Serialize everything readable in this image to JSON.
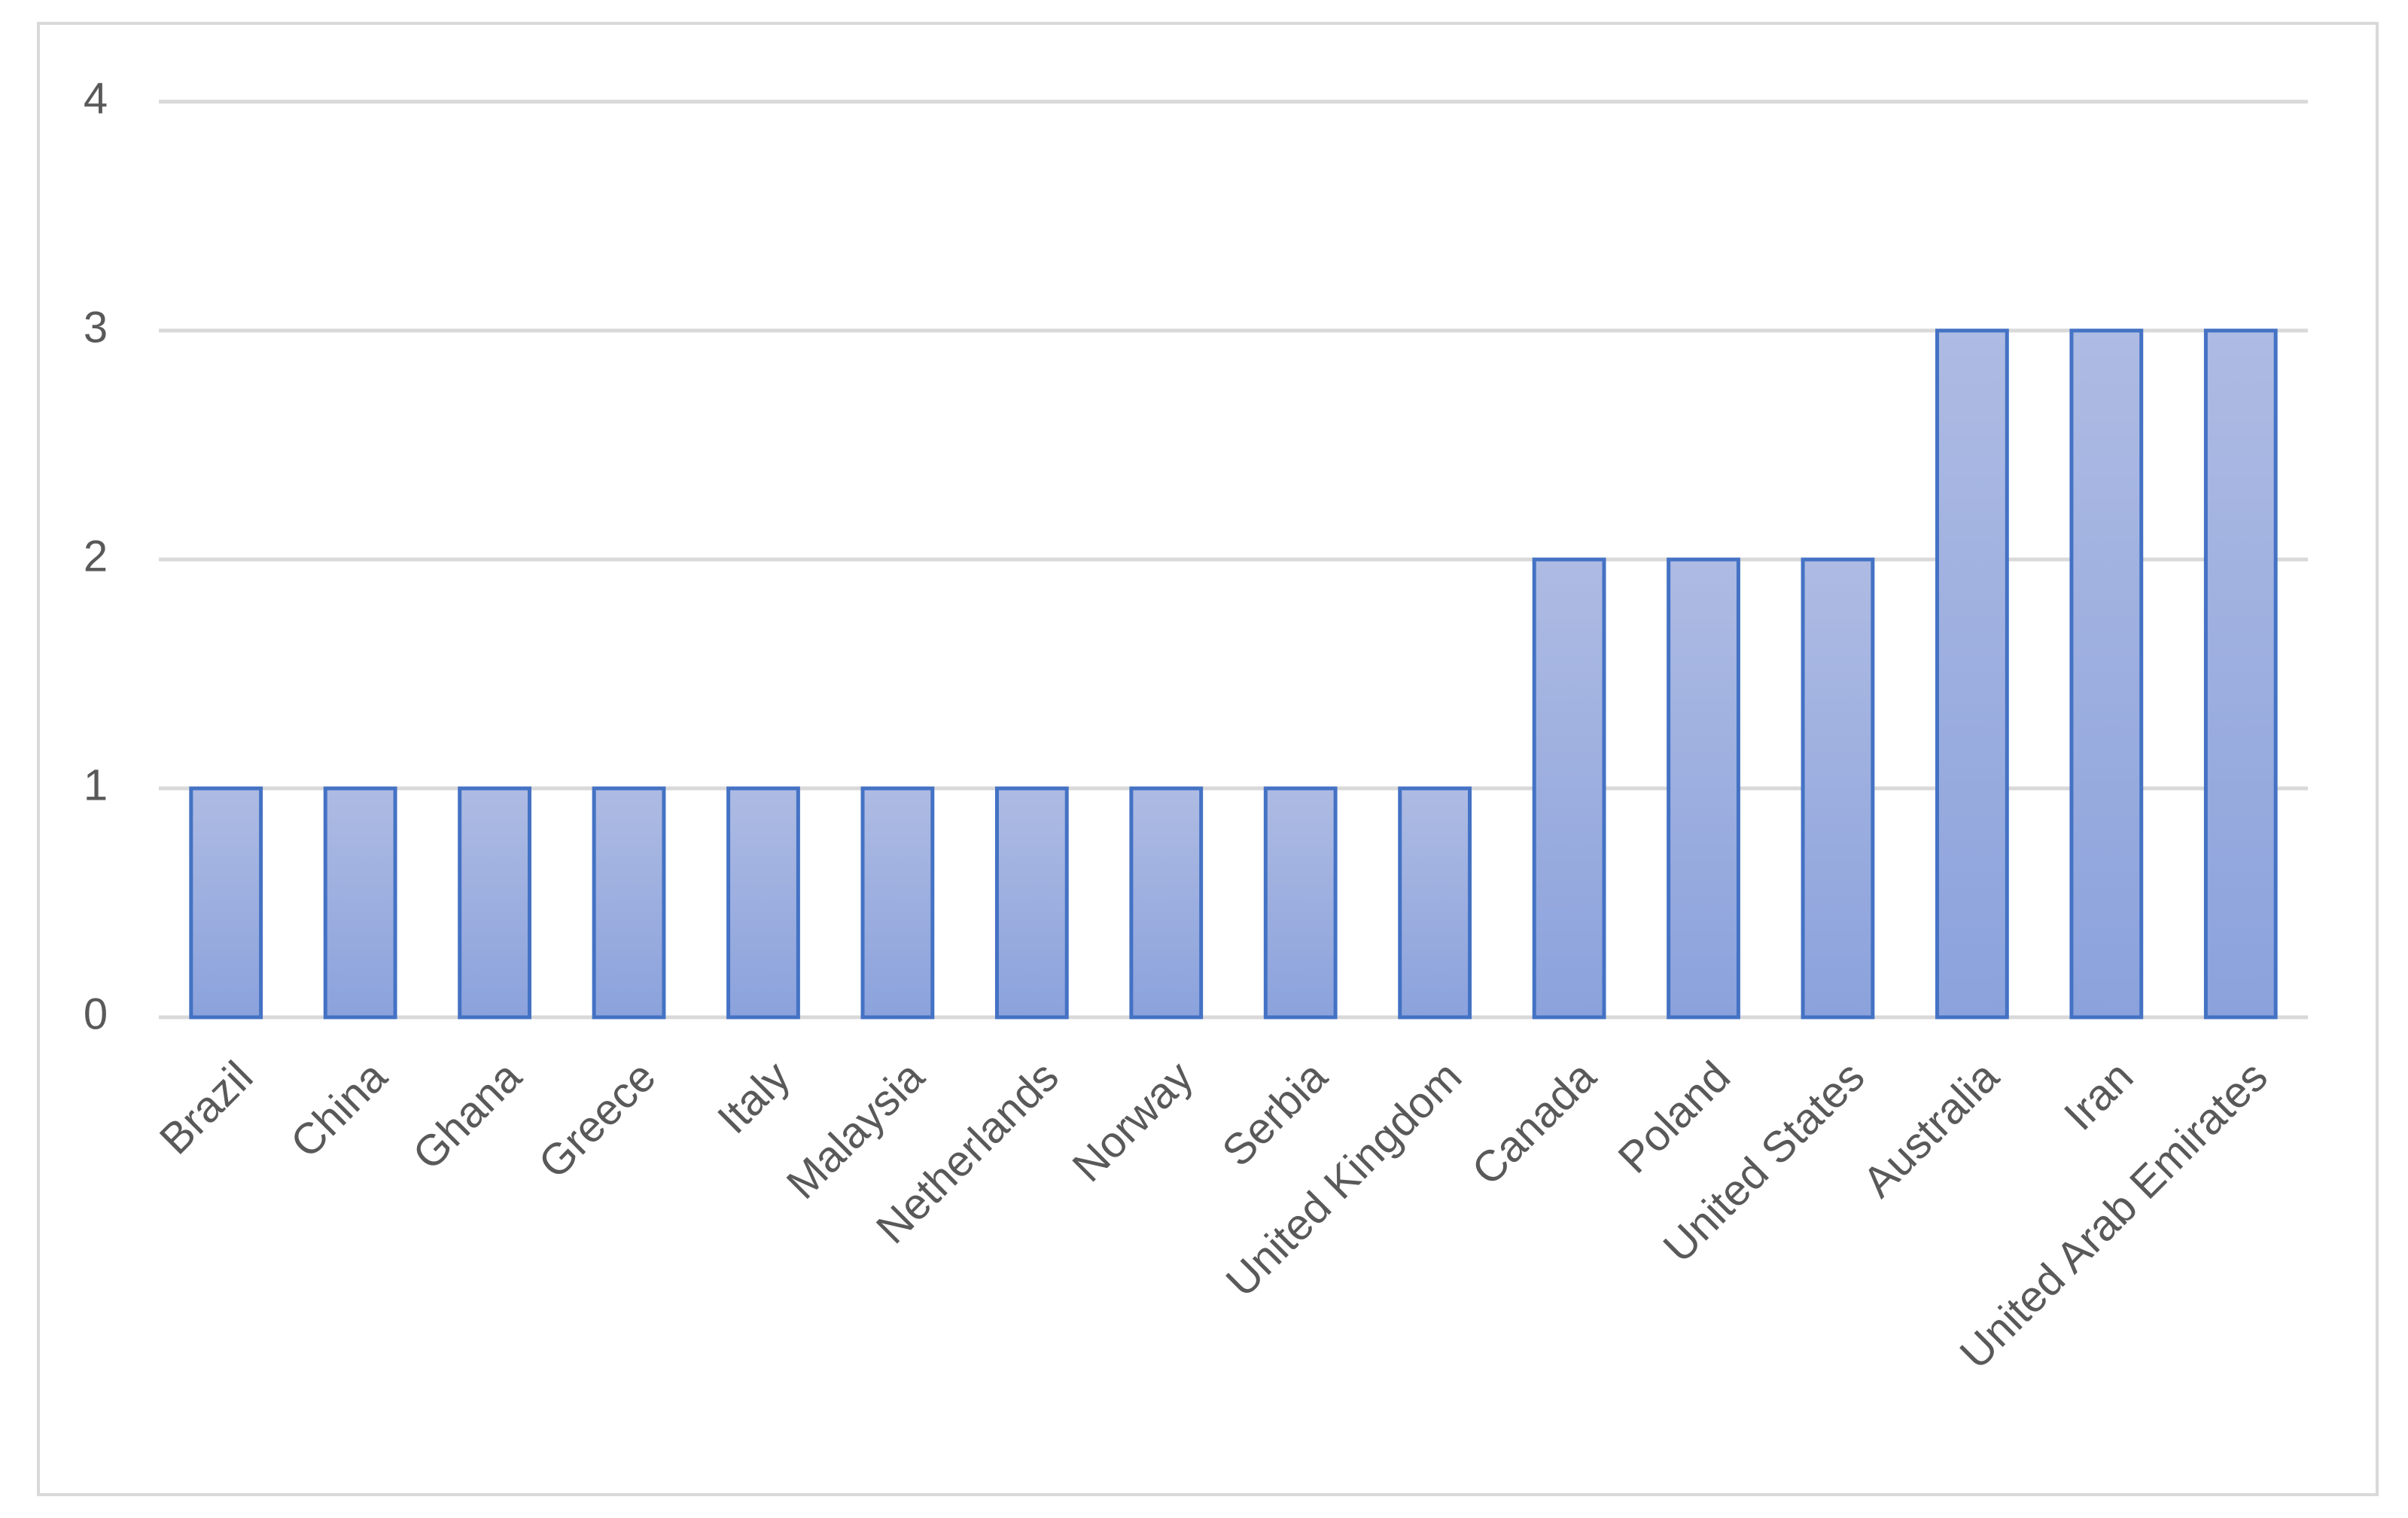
{
  "chart_data": {
    "type": "bar",
    "categories": [
      "Brazil",
      "China",
      "Ghana",
      "Greece",
      "Italy",
      "Malaysia",
      "Netherlands",
      "Norway",
      "Serbia",
      "United Kingdom",
      "Canada",
      "Poland",
      "United States",
      "Australia",
      "Iran",
      "United Arab Emirates"
    ],
    "values": [
      1,
      1,
      1,
      1,
      1,
      1,
      1,
      1,
      1,
      1,
      2,
      2,
      2,
      3,
      3,
      3
    ],
    "color": "#4472c4",
    "ylim": [
      0,
      4
    ],
    "yticks": [
      0,
      1,
      2,
      3,
      4
    ],
    "grid": true
  }
}
